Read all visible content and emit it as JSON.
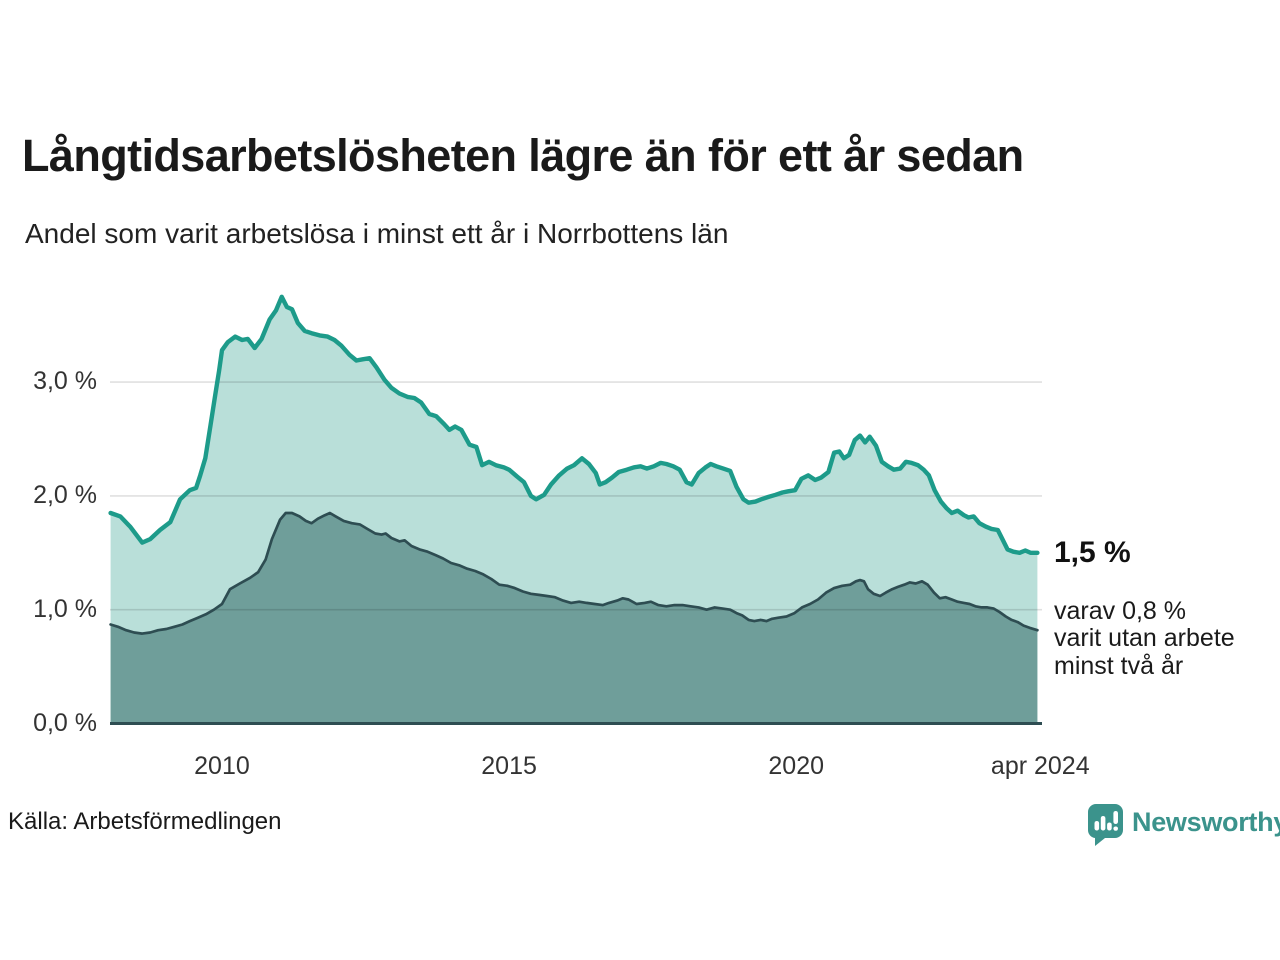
{
  "chart_data": {
    "type": "area",
    "title": "Långtidsarbetslösheten lägre än för ett år sedan",
    "subtitle": "Andel som varit arbetslösa i minst ett år i Norrbottens län",
    "source": "Källa: Arbetsförmedlingen",
    "x_range": [
      2008.05,
      2024.28
    ],
    "ylim": [
      0,
      3.9
    ],
    "gridline_color": "rgba(0,0,0,0.12)",
    "axis_color": "#2e4d52",
    "y_ticks": [
      {
        "label": "0,0 %",
        "value": 0
      },
      {
        "label": "1,0 %",
        "value": 1
      },
      {
        "label": "2,0 %",
        "value": 2
      },
      {
        "label": "3,0 %",
        "value": 3
      }
    ],
    "x_ticks": [
      {
        "label": "2010",
        "year": 2010
      },
      {
        "label": "2015",
        "year": 2015
      },
      {
        "label": "2020",
        "year": 2020
      },
      {
        "label": "apr 2024",
        "year": 2024.25
      }
    ],
    "annotations": {
      "latest_total": "1,5 %",
      "detail_lines": [
        "varav 0,8 %",
        "varit utan arbete",
        "minst två år"
      ]
    },
    "series": [
      {
        "name": "Andel arbetslösa minst ett år",
        "color": "#1d9b8a",
        "fill": "#b9dfd9",
        "width": 4.4,
        "points": [
          [
            2008.06,
            1.85
          ],
          [
            2008.23,
            1.82
          ],
          [
            2008.4,
            1.73
          ],
          [
            2008.61,
            1.59
          ],
          [
            2008.75,
            1.62
          ],
          [
            2008.92,
            1.7
          ],
          [
            2009.1,
            1.77
          ],
          [
            2009.27,
            1.97
          ],
          [
            2009.44,
            2.05
          ],
          [
            2009.55,
            2.07
          ],
          [
            2009.62,
            2.18
          ],
          [
            2009.71,
            2.33
          ],
          [
            2009.8,
            2.62
          ],
          [
            2009.88,
            2.88
          ],
          [
            2009.95,
            3.1
          ],
          [
            2010.0,
            3.28
          ],
          [
            2010.1,
            3.35
          ],
          [
            2010.23,
            3.4
          ],
          [
            2010.35,
            3.37
          ],
          [
            2010.45,
            3.38
          ],
          [
            2010.57,
            3.3
          ],
          [
            2010.69,
            3.38
          ],
          [
            2010.83,
            3.55
          ],
          [
            2010.94,
            3.63
          ],
          [
            2011.04,
            3.75
          ],
          [
            2011.13,
            3.66
          ],
          [
            2011.22,
            3.64
          ],
          [
            2011.32,
            3.52
          ],
          [
            2011.44,
            3.45
          ],
          [
            2011.56,
            3.43
          ],
          [
            2011.7,
            3.41
          ],
          [
            2011.84,
            3.4
          ],
          [
            2011.96,
            3.37
          ],
          [
            2012.08,
            3.32
          ],
          [
            2012.22,
            3.24
          ],
          [
            2012.34,
            3.19
          ],
          [
            2012.45,
            3.2
          ],
          [
            2012.57,
            3.21
          ],
          [
            2012.69,
            3.13
          ],
          [
            2012.83,
            3.02
          ],
          [
            2012.95,
            2.95
          ],
          [
            2013.09,
            2.9
          ],
          [
            2013.23,
            2.87
          ],
          [
            2013.35,
            2.86
          ],
          [
            2013.47,
            2.82
          ],
          [
            2013.61,
            2.72
          ],
          [
            2013.73,
            2.7
          ],
          [
            2013.87,
            2.63
          ],
          [
            2013.96,
            2.58
          ],
          [
            2014.06,
            2.61
          ],
          [
            2014.17,
            2.58
          ],
          [
            2014.31,
            2.45
          ],
          [
            2014.43,
            2.43
          ],
          [
            2014.53,
            2.27
          ],
          [
            2014.65,
            2.3
          ],
          [
            2014.77,
            2.27
          ],
          [
            2014.91,
            2.25
          ],
          [
            2015.0,
            2.23
          ],
          [
            2015.14,
            2.17
          ],
          [
            2015.26,
            2.12
          ],
          [
            2015.38,
            2.0
          ],
          [
            2015.47,
            1.97
          ],
          [
            2015.61,
            2.01
          ],
          [
            2015.73,
            2.1
          ],
          [
            2015.87,
            2.18
          ],
          [
            2016.01,
            2.24
          ],
          [
            2016.13,
            2.27
          ],
          [
            2016.27,
            2.33
          ],
          [
            2016.39,
            2.28
          ],
          [
            2016.51,
            2.2
          ],
          [
            2016.58,
            2.1
          ],
          [
            2016.68,
            2.12
          ],
          [
            2016.79,
            2.16
          ],
          [
            2016.91,
            2.21
          ],
          [
            2017.05,
            2.23
          ],
          [
            2017.17,
            2.25
          ],
          [
            2017.29,
            2.26
          ],
          [
            2017.4,
            2.24
          ],
          [
            2017.52,
            2.26
          ],
          [
            2017.64,
            2.29
          ],
          [
            2017.74,
            2.28
          ],
          [
            2017.86,
            2.26
          ],
          [
            2017.97,
            2.23
          ],
          [
            2018.09,
            2.12
          ],
          [
            2018.18,
            2.1
          ],
          [
            2018.3,
            2.2
          ],
          [
            2018.42,
            2.25
          ],
          [
            2018.51,
            2.28
          ],
          [
            2018.61,
            2.26
          ],
          [
            2018.73,
            2.24
          ],
          [
            2018.85,
            2.22
          ],
          [
            2018.96,
            2.08
          ],
          [
            2019.08,
            1.97
          ],
          [
            2019.17,
            1.94
          ],
          [
            2019.29,
            1.95
          ],
          [
            2019.39,
            1.97
          ],
          [
            2019.51,
            1.99
          ],
          [
            2019.64,
            2.01
          ],
          [
            2019.76,
            2.03
          ],
          [
            2019.86,
            2.04
          ],
          [
            2019.98,
            2.05
          ],
          [
            2020.09,
            2.15
          ],
          [
            2020.21,
            2.18
          ],
          [
            2020.33,
            2.14
          ],
          [
            2020.43,
            2.16
          ],
          [
            2020.56,
            2.21
          ],
          [
            2020.66,
            2.38
          ],
          [
            2020.75,
            2.39
          ],
          [
            2020.83,
            2.33
          ],
          [
            2020.92,
            2.36
          ],
          [
            2021.02,
            2.49
          ],
          [
            2021.11,
            2.53
          ],
          [
            2021.2,
            2.47
          ],
          [
            2021.28,
            2.52
          ],
          [
            2021.39,
            2.44
          ],
          [
            2021.49,
            2.3
          ],
          [
            2021.6,
            2.26
          ],
          [
            2021.7,
            2.23
          ],
          [
            2021.81,
            2.24
          ],
          [
            2021.91,
            2.3
          ],
          [
            2022.01,
            2.29
          ],
          [
            2022.12,
            2.27
          ],
          [
            2022.22,
            2.23
          ],
          [
            2022.31,
            2.18
          ],
          [
            2022.41,
            2.05
          ],
          [
            2022.52,
            1.95
          ],
          [
            2022.62,
            1.89
          ],
          [
            2022.71,
            1.85
          ],
          [
            2022.81,
            1.87
          ],
          [
            2022.92,
            1.83
          ],
          [
            2023.0,
            1.81
          ],
          [
            2023.09,
            1.82
          ],
          [
            2023.19,
            1.76
          ],
          [
            2023.3,
            1.73
          ],
          [
            2023.4,
            1.71
          ],
          [
            2023.51,
            1.7
          ],
          [
            2023.59,
            1.62
          ],
          [
            2023.68,
            1.53
          ],
          [
            2023.78,
            1.51
          ],
          [
            2023.89,
            1.5
          ],
          [
            2023.99,
            1.52
          ],
          [
            2024.08,
            1.5
          ],
          [
            2024.2,
            1.5
          ]
        ]
      },
      {
        "name": "varav utan arbete minst två år",
        "color": "#2e4d52",
        "fill": "#6f9e9a",
        "width": 2.7,
        "points": [
          [
            2008.06,
            0.87
          ],
          [
            2008.19,
            0.85
          ],
          [
            2008.33,
            0.82
          ],
          [
            2008.47,
            0.8
          ],
          [
            2008.61,
            0.79
          ],
          [
            2008.75,
            0.8
          ],
          [
            2008.89,
            0.82
          ],
          [
            2009.03,
            0.83
          ],
          [
            2009.17,
            0.85
          ],
          [
            2009.31,
            0.87
          ],
          [
            2009.44,
            0.9
          ],
          [
            2009.58,
            0.93
          ],
          [
            2009.72,
            0.96
          ],
          [
            2009.86,
            1.0
          ],
          [
            2010.0,
            1.05
          ],
          [
            2010.14,
            1.18
          ],
          [
            2010.31,
            1.23
          ],
          [
            2010.49,
            1.28
          ],
          [
            2010.63,
            1.33
          ],
          [
            2010.76,
            1.44
          ],
          [
            2010.87,
            1.62
          ],
          [
            2011.01,
            1.79
          ],
          [
            2011.11,
            1.85
          ],
          [
            2011.22,
            1.85
          ],
          [
            2011.35,
            1.82
          ],
          [
            2011.46,
            1.78
          ],
          [
            2011.56,
            1.76
          ],
          [
            2011.67,
            1.8
          ],
          [
            2011.79,
            1.83
          ],
          [
            2011.88,
            1.85
          ],
          [
            2011.98,
            1.82
          ],
          [
            2012.12,
            1.78
          ],
          [
            2012.26,
            1.76
          ],
          [
            2012.4,
            1.75
          ],
          [
            2012.53,
            1.71
          ],
          [
            2012.67,
            1.67
          ],
          [
            2012.78,
            1.66
          ],
          [
            2012.85,
            1.67
          ],
          [
            2012.95,
            1.63
          ],
          [
            2013.09,
            1.6
          ],
          [
            2013.18,
            1.61
          ],
          [
            2013.3,
            1.56
          ],
          [
            2013.44,
            1.53
          ],
          [
            2013.58,
            1.51
          ],
          [
            2013.72,
            1.48
          ],
          [
            2013.85,
            1.45
          ],
          [
            2013.99,
            1.41
          ],
          [
            2014.13,
            1.39
          ],
          [
            2014.27,
            1.36
          ],
          [
            2014.41,
            1.34
          ],
          [
            2014.55,
            1.31
          ],
          [
            2014.69,
            1.27
          ],
          [
            2014.83,
            1.22
          ],
          [
            2014.97,
            1.21
          ],
          [
            2015.1,
            1.19
          ],
          [
            2015.24,
            1.16
          ],
          [
            2015.38,
            1.14
          ],
          [
            2015.52,
            1.13
          ],
          [
            2015.66,
            1.12
          ],
          [
            2015.8,
            1.11
          ],
          [
            2015.94,
            1.08
          ],
          [
            2016.08,
            1.06
          ],
          [
            2016.22,
            1.07
          ],
          [
            2016.35,
            1.06
          ],
          [
            2016.49,
            1.05
          ],
          [
            2016.63,
            1.04
          ],
          [
            2016.74,
            1.06
          ],
          [
            2016.88,
            1.08
          ],
          [
            2016.98,
            1.1
          ],
          [
            2017.08,
            1.09
          ],
          [
            2017.22,
            1.05
          ],
          [
            2017.36,
            1.06
          ],
          [
            2017.47,
            1.07
          ],
          [
            2017.6,
            1.04
          ],
          [
            2017.74,
            1.03
          ],
          [
            2017.88,
            1.04
          ],
          [
            2018.02,
            1.04
          ],
          [
            2018.16,
            1.03
          ],
          [
            2018.3,
            1.02
          ],
          [
            2018.44,
            1.0
          ],
          [
            2018.58,
            1.02
          ],
          [
            2018.72,
            1.01
          ],
          [
            2018.85,
            1.0
          ],
          [
            2018.96,
            0.97
          ],
          [
            2019.06,
            0.95
          ],
          [
            2019.17,
            0.91
          ],
          [
            2019.27,
            0.9
          ],
          [
            2019.38,
            0.91
          ],
          [
            2019.48,
            0.9
          ],
          [
            2019.58,
            0.92
          ],
          [
            2019.69,
            0.93
          ],
          [
            2019.83,
            0.94
          ],
          [
            2019.97,
            0.97
          ],
          [
            2020.1,
            1.02
          ],
          [
            2020.24,
            1.05
          ],
          [
            2020.38,
            1.09
          ],
          [
            2020.52,
            1.15
          ],
          [
            2020.66,
            1.19
          ],
          [
            2020.8,
            1.21
          ],
          [
            2020.94,
            1.22
          ],
          [
            2021.04,
            1.25
          ],
          [
            2021.11,
            1.26
          ],
          [
            2021.18,
            1.25
          ],
          [
            2021.25,
            1.18
          ],
          [
            2021.35,
            1.14
          ],
          [
            2021.46,
            1.12
          ],
          [
            2021.56,
            1.15
          ],
          [
            2021.67,
            1.18
          ],
          [
            2021.77,
            1.2
          ],
          [
            2021.88,
            1.22
          ],
          [
            2021.98,
            1.24
          ],
          [
            2022.08,
            1.23
          ],
          [
            2022.19,
            1.25
          ],
          [
            2022.29,
            1.22
          ],
          [
            2022.4,
            1.15
          ],
          [
            2022.5,
            1.1
          ],
          [
            2022.6,
            1.11
          ],
          [
            2022.71,
            1.09
          ],
          [
            2022.81,
            1.07
          ],
          [
            2022.92,
            1.06
          ],
          [
            2023.02,
            1.05
          ],
          [
            2023.12,
            1.03
          ],
          [
            2023.23,
            1.02
          ],
          [
            2023.33,
            1.02
          ],
          [
            2023.44,
            1.01
          ],
          [
            2023.54,
            0.98
          ],
          [
            2023.65,
            0.94
          ],
          [
            2023.75,
            0.91
          ],
          [
            2023.86,
            0.89
          ],
          [
            2023.96,
            0.86
          ],
          [
            2024.07,
            0.84
          ],
          [
            2024.2,
            0.82
          ]
        ]
      }
    ]
  },
  "branding": {
    "wordmark": "Newsworthy",
    "icon": "speech-bubble-bar-chart",
    "brand_color": "#3b938c"
  }
}
